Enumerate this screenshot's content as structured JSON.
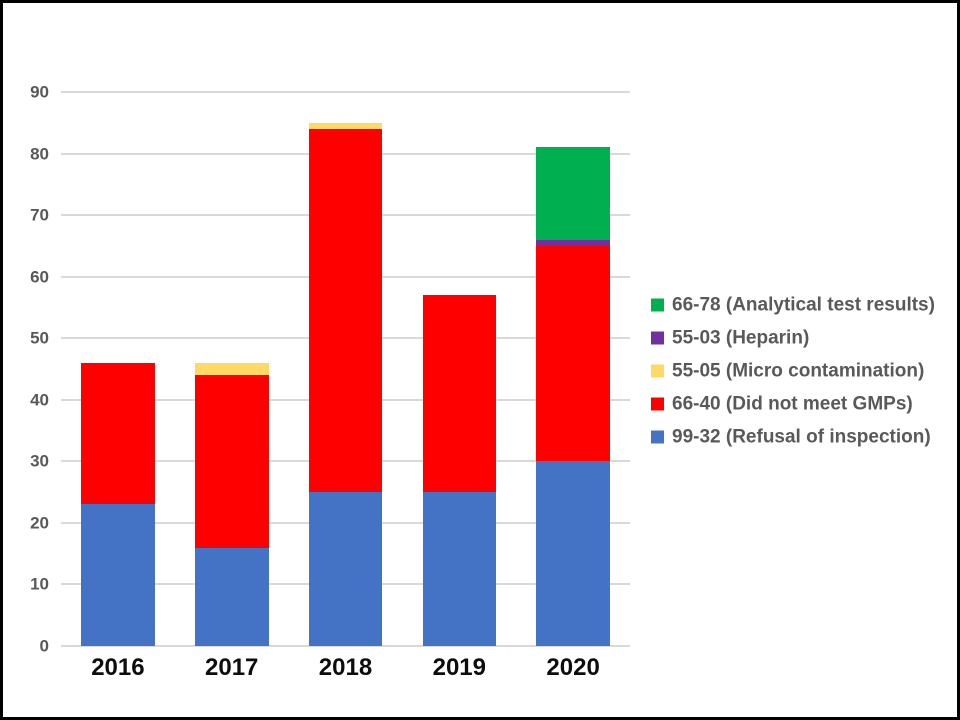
{
  "chart_data": {
    "type": "bar",
    "stacked": true,
    "title": "",
    "xlabel": "",
    "ylabel": "",
    "grid": true,
    "legend_position": "right",
    "ylim": [
      0,
      90
    ],
    "ytick_step": 10,
    "yticks": [
      "0",
      "10",
      "20",
      "30",
      "40",
      "50",
      "60",
      "70",
      "80",
      "90"
    ],
    "categories": [
      "2016",
      "2017",
      "2018",
      "2019",
      "2020"
    ],
    "series": [
      {
        "code": "99-32",
        "name": "99-32 (Refusal of inspection)",
        "color": "#4472c4",
        "values": [
          23,
          16,
          25,
          25,
          30
        ]
      },
      {
        "code": "66-40",
        "name": "66-40 (Did not meet GMPs)",
        "color": "#ff0000",
        "values": [
          23,
          28,
          59,
          32,
          35
        ]
      },
      {
        "code": "55-05",
        "name": "55-05 (Micro contamination)",
        "color": "#ffd966",
        "values": [
          0,
          2,
          1,
          0,
          0
        ]
      },
      {
        "code": "55-03",
        "name": "55-03 (Heparin)",
        "color": "#7030a0",
        "values": [
          0,
          0,
          0,
          0,
          1
        ]
      },
      {
        "code": "66-78",
        "name": "66-78 (Analytical test results)",
        "color": "#00b050",
        "values": [
          0,
          0,
          0,
          0,
          15
        ]
      }
    ]
  },
  "legend": {
    "items": [
      {
        "code": "66-78",
        "label": "66-78 (Analytical test results)",
        "color": "#00b050"
      },
      {
        "code": "55-03",
        "label": "55-03 (Heparin)",
        "color": "#7030a0"
      },
      {
        "code": "55-05",
        "label": "55-05 (Micro contamination)",
        "color": "#ffd966"
      },
      {
        "code": "66-40",
        "label": "66-40 (Did not meet GMPs)",
        "color": "#ff0000"
      },
      {
        "code": "99-32",
        "label": "99-32 (Refusal of inspection)",
        "color": "#4472c4"
      }
    ]
  },
  "colors": {
    "gridline": "#d9d9d9",
    "axis_text": "#595959",
    "category_text": "#0d0d0d",
    "frame_border": "#000000",
    "background": "#ffffff"
  }
}
